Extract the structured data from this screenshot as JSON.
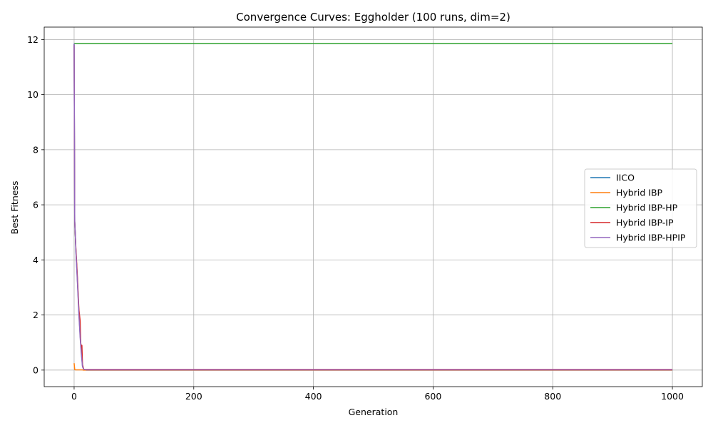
{
  "chart_data": {
    "type": "line",
    "title": "Convergence Curves: Eggholder (100 runs, dim=2)",
    "xlabel": "Generation",
    "ylabel": "Best Fitness",
    "xlim": [
      -50,
      1050
    ],
    "ylim": [
      -0.6,
      12.45
    ],
    "xticks": [
      0,
      200,
      400,
      600,
      800,
      1000
    ],
    "yticks": [
      0,
      2,
      4,
      6,
      8,
      10,
      12
    ],
    "grid": true,
    "legend_position": "center-right",
    "series": [
      {
        "name": "IICO",
        "color": "#1f77b4",
        "x": [
          0,
          1,
          2,
          3,
          5,
          8,
          10,
          12,
          14,
          16,
          20,
          50,
          1000
        ],
        "y": [
          11.85,
          5.4,
          4.9,
          4.3,
          3.5,
          2.1,
          1.3,
          0.7,
          0.15,
          0.02,
          0.0,
          0.0,
          0.0
        ]
      },
      {
        "name": "Hybrid IBP",
        "color": "#ff7f0e",
        "x": [
          0,
          1,
          2,
          5,
          10,
          14,
          15,
          1000
        ],
        "y": [
          0.25,
          0.02,
          0.01,
          0.01,
          0.01,
          0.01,
          0.0,
          0.0
        ]
      },
      {
        "name": "Hybrid IBP-HP",
        "color": "#2ca02c",
        "x": [
          0,
          1,
          1000
        ],
        "y": [
          11.85,
          11.85,
          11.85
        ]
      },
      {
        "name": "Hybrid IBP-IP",
        "color": "#d62728",
        "x": [
          0,
          1,
          2,
          3,
          5,
          8,
          10,
          11,
          12,
          13,
          14,
          16,
          20,
          1000
        ],
        "y": [
          11.8,
          5.4,
          4.9,
          4.4,
          3.6,
          2.2,
          1.8,
          1.0,
          0.8,
          0.9,
          0.2,
          0.03,
          0.02,
          0.02
        ]
      },
      {
        "name": "Hybrid IBP-HPIP",
        "color": "#9467bd",
        "x": [
          0,
          1,
          2,
          3,
          5,
          8,
          10,
          12,
          14,
          16,
          20,
          1000
        ],
        "y": [
          11.85,
          5.4,
          4.9,
          4.3,
          3.4,
          2.0,
          1.2,
          0.6,
          0.12,
          0.03,
          0.01,
          0.01
        ]
      }
    ]
  }
}
